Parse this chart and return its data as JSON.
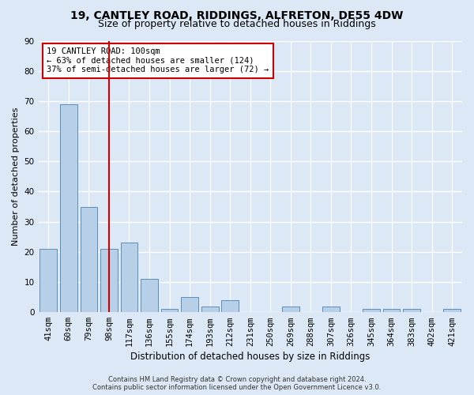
{
  "title": "19, CANTLEY ROAD, RIDDINGS, ALFRETON, DE55 4DW",
  "subtitle": "Size of property relative to detached houses in Riddings",
  "xlabel": "Distribution of detached houses by size in Riddings",
  "ylabel": "Number of detached properties",
  "categories": [
    "41sqm",
    "60sqm",
    "79sqm",
    "98sqm",
    "117sqm",
    "136sqm",
    "155sqm",
    "174sqm",
    "193sqm",
    "212sqm",
    "231sqm",
    "250sqm",
    "269sqm",
    "288sqm",
    "307sqm",
    "326sqm",
    "345sqm",
    "364sqm",
    "383sqm",
    "402sqm",
    "421sqm"
  ],
  "values": [
    21,
    69,
    35,
    21,
    23,
    11,
    1,
    5,
    2,
    4,
    0,
    0,
    2,
    0,
    2,
    0,
    1,
    1,
    1,
    0,
    1
  ],
  "bar_color": "#b8cfe8",
  "bar_edge_color": "#5b8db8",
  "highlight_index": 3,
  "highlight_line_color": "#cc0000",
  "annotation_text": "19 CANTLEY ROAD: 100sqm\n← 63% of detached houses are smaller (124)\n37% of semi-detached houses are larger (72) →",
  "annotation_box_color": "#ffffff",
  "annotation_box_edge_color": "#cc0000",
  "ylim": [
    0,
    90
  ],
  "yticks": [
    0,
    10,
    20,
    30,
    40,
    50,
    60,
    70,
    80,
    90
  ],
  "footer_line1": "Contains HM Land Registry data © Crown copyright and database right 2024.",
  "footer_line2": "Contains public sector information licensed under the Open Government Licence v3.0.",
  "background_color": "#dce8f5",
  "plot_bg_color": "#dce8f5",
  "grid_color": "#ffffff",
  "title_fontsize": 10,
  "subtitle_fontsize": 9,
  "axis_label_fontsize": 8,
  "tick_fontsize": 7.5,
  "footer_fontsize": 6,
  "ann_fontsize": 7.5
}
